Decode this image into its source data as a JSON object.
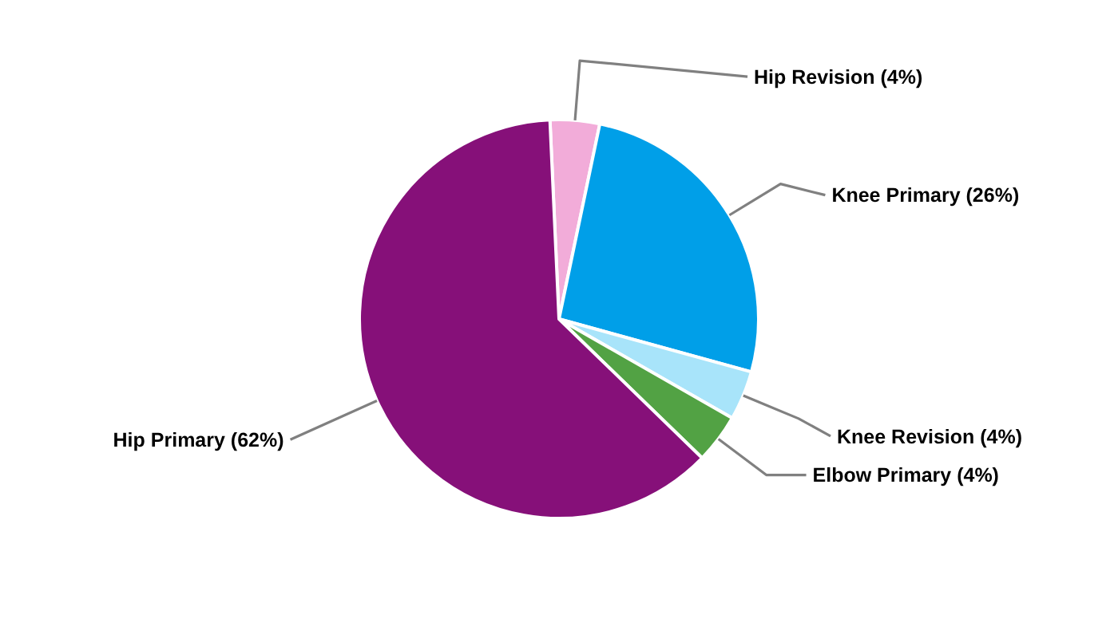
{
  "chart_data": {
    "type": "pie",
    "categories": [
      "Hip Revision",
      "Knee Primary",
      "Knee Revision",
      "Elbow Primary",
      "Hip Primary"
    ],
    "values": [
      4,
      26,
      4,
      4,
      62
    ],
    "value_labels": [
      "(4%)",
      "(26%)",
      "(4%)",
      "(4%)",
      "(62%)"
    ],
    "colors": [
      "#f2acd9",
      "#009fe8",
      "#a8e4fa",
      "#52a244",
      "#861079"
    ]
  }
}
